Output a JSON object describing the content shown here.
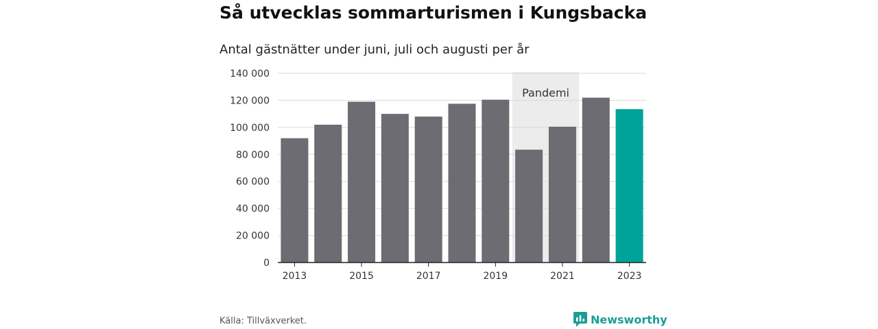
{
  "chart_data": {
    "type": "bar",
    "title": "Så utvecklas sommarturismen i Kungsbacka",
    "subtitle": "Antal gästnätter under juni, juli och augusti per år",
    "categories": [
      "2013",
      "2014",
      "2015",
      "2016",
      "2017",
      "2018",
      "2019",
      "2020",
      "2021",
      "2022",
      "2023"
    ],
    "values": [
      92000,
      102000,
      119000,
      110000,
      108000,
      117500,
      120500,
      83500,
      100500,
      122000,
      113500
    ],
    "highlight_category": "2023",
    "colors": {
      "bar": "#6d6c73",
      "highlight": "#00a398",
      "band": "#ececec"
    },
    "xtick_labels": [
      "2013",
      "2015",
      "2017",
      "2019",
      "2021",
      "2023"
    ],
    "ylim": [
      0,
      140000
    ],
    "yticks": [
      0,
      20000,
      40000,
      60000,
      80000,
      100000,
      120000,
      140000
    ],
    "ytick_labels": [
      "0",
      "20 000",
      "40 000",
      "60 000",
      "80 000",
      "100 000",
      "120 000",
      "140 000"
    ],
    "xlabel": "",
    "ylabel": "",
    "grid": true,
    "annotation": {
      "label": "Pandemi",
      "from": "2020",
      "to": "2021"
    }
  },
  "footer": {
    "source": "Källa: Tillväxverket.",
    "brand": "Newsworthy",
    "brand_icon": "newsworthy-logo-icon"
  }
}
